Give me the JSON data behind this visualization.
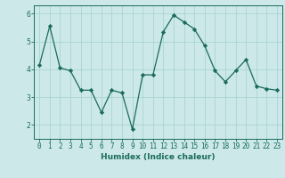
{
  "x": [
    0,
    1,
    2,
    3,
    4,
    5,
    6,
    7,
    8,
    9,
    10,
    11,
    12,
    13,
    14,
    15,
    16,
    17,
    18,
    19,
    20,
    21,
    22,
    23
  ],
  "y": [
    4.15,
    5.55,
    4.05,
    3.95,
    3.25,
    3.25,
    2.45,
    3.25,
    3.15,
    1.85,
    3.8,
    3.8,
    5.35,
    5.95,
    5.7,
    5.45,
    4.85,
    3.95,
    3.55,
    3.95,
    4.35,
    3.4,
    3.3,
    3.25
  ],
  "line_color": "#1a6b5a",
  "marker": "D",
  "marker_size": 2.2,
  "bg_color": "#cce8e8",
  "grid_color": "#aad4d4",
  "xlabel": "Humidex (Indice chaleur)",
  "ylim": [
    1.5,
    6.3
  ],
  "xlim": [
    -0.5,
    23.5
  ],
  "yticks": [
    2,
    3,
    4,
    5,
    6
  ],
  "xticks": [
    0,
    1,
    2,
    3,
    4,
    5,
    6,
    7,
    8,
    9,
    10,
    11,
    12,
    13,
    14,
    15,
    16,
    17,
    18,
    19,
    20,
    21,
    22,
    23
  ],
  "label_fontsize": 6.5,
  "tick_fontsize": 5.5
}
